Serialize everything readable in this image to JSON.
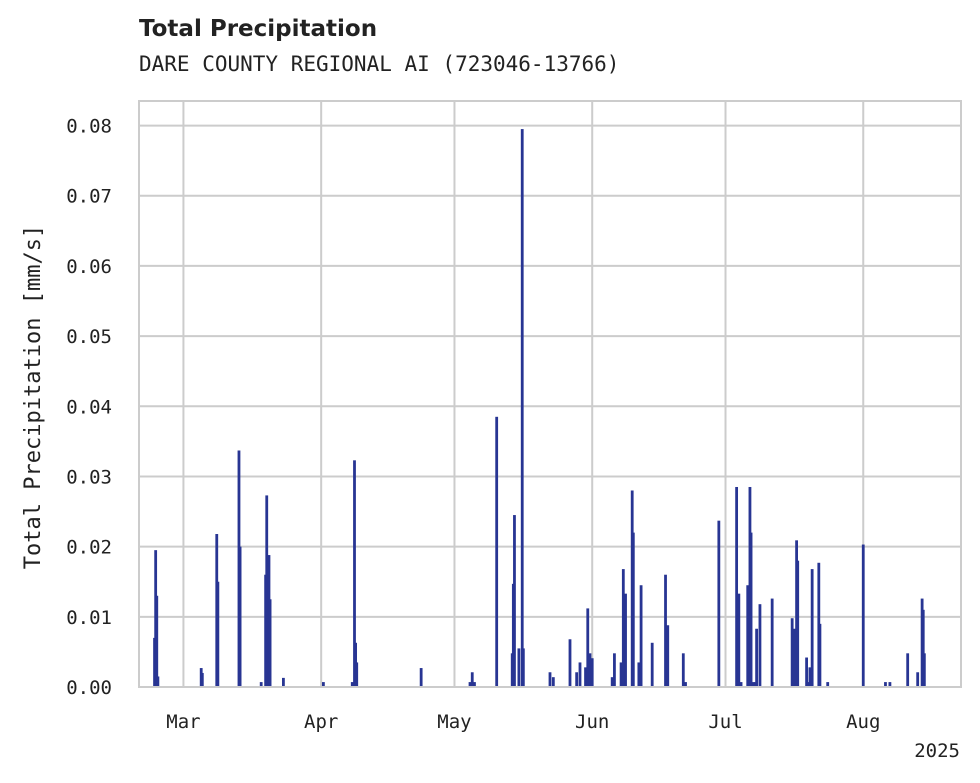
{
  "chart_data": {
    "type": "bar",
    "title": "Total Precipitation",
    "subtitle": "DARE COUNTY REGIONAL AI (723046-13766)",
    "ylabel": "Total Precipitation [mm/s]",
    "xlabel": "",
    "ylim": [
      0,
      0.0835
    ],
    "xlim": [
      "2025-02-19",
      "2025-08-23"
    ],
    "grid": true,
    "color": "#283593",
    "yticks": [
      {
        "value": 0.0,
        "label": "0.00"
      },
      {
        "value": 0.01,
        "label": "0.01"
      },
      {
        "value": 0.02,
        "label": "0.02"
      },
      {
        "value": 0.03,
        "label": "0.03"
      },
      {
        "value": 0.04,
        "label": "0.04"
      },
      {
        "value": 0.05,
        "label": "0.05"
      },
      {
        "value": 0.06,
        "label": "0.06"
      },
      {
        "value": 0.07,
        "label": "0.07"
      },
      {
        "value": 0.08,
        "label": "0.08"
      }
    ],
    "xticks": [
      {
        "date": "2025-03-01",
        "label": "Mar"
      },
      {
        "date": "2025-04-01",
        "label": "Apr"
      },
      {
        "date": "2025-05-01",
        "label": "May"
      },
      {
        "date": "2025-06-01",
        "label": "Jun"
      },
      {
        "date": "2025-07-01",
        "label": "Jul"
      },
      {
        "date": "2025-08-01",
        "label": "Aug"
      }
    ],
    "year_label": "2025",
    "points": [
      [
        "2025-02-22T12:00",
        0.007
      ],
      [
        "2025-02-22T18:00",
        0.0195
      ],
      [
        "2025-02-23T00:00",
        0.013
      ],
      [
        "2025-02-23T06:00",
        0.0015
      ],
      [
        "2025-03-05T00:00",
        0.0027
      ],
      [
        "2025-03-05T06:00",
        0.002
      ],
      [
        "2025-03-08T12:00",
        0.0218
      ],
      [
        "2025-03-08T18:00",
        0.015
      ],
      [
        "2025-03-13T12:00",
        0.0337
      ],
      [
        "2025-03-13T18:00",
        0.02
      ],
      [
        "2025-03-18T12:00",
        0.0007
      ],
      [
        "2025-03-19T12:00",
        0.016
      ],
      [
        "2025-03-19T18:00",
        0.0273
      ],
      [
        "2025-03-20T06:00",
        0.0188
      ],
      [
        "2025-03-20T12:00",
        0.0125
      ],
      [
        "2025-03-23T12:00",
        0.0013
      ],
      [
        "2025-04-01T12:00",
        0.0007
      ],
      [
        "2025-04-08T00:00",
        0.0007
      ],
      [
        "2025-04-08T12:00",
        0.0323
      ],
      [
        "2025-04-08T18:00",
        0.0063
      ],
      [
        "2025-04-09T00:00",
        0.0035
      ],
      [
        "2025-04-23T12:00",
        0.0027
      ],
      [
        "2025-05-04T12:00",
        0.0007
      ],
      [
        "2025-05-05T00:00",
        0.0021
      ],
      [
        "2025-05-05T12:00",
        0.0007
      ],
      [
        "2025-05-10T12:00",
        0.0385
      ],
      [
        "2025-05-14T00:00",
        0.0048
      ],
      [
        "2025-05-14T06:00",
        0.0147
      ],
      [
        "2025-05-14T12:00",
        0.0245
      ],
      [
        "2025-05-15T12:00",
        0.0055
      ],
      [
        "2025-05-16T06:00",
        0.0795
      ],
      [
        "2025-05-16T12:00",
        0.0055
      ],
      [
        "2025-05-22T12:00",
        0.0021
      ],
      [
        "2025-05-23T06:00",
        0.0014
      ],
      [
        "2025-05-27T00:00",
        0.0068
      ],
      [
        "2025-05-28T12:00",
        0.0021
      ],
      [
        "2025-05-29T06:00",
        0.0035
      ],
      [
        "2025-05-30T12:00",
        0.0028
      ],
      [
        "2025-05-31T00:00",
        0.0112
      ],
      [
        "2025-05-31T12:00",
        0.0048
      ],
      [
        "2025-06-01T00:00",
        0.0041
      ],
      [
        "2025-06-05T12:00",
        0.0014
      ],
      [
        "2025-06-06T00:00",
        0.0048
      ],
      [
        "2025-06-07T12:00",
        0.0035
      ],
      [
        "2025-06-08T00:00",
        0.0168
      ],
      [
        "2025-06-08T12:00",
        0.0133
      ],
      [
        "2025-06-10T00:00",
        0.028
      ],
      [
        "2025-06-10T06:00",
        0.022
      ],
      [
        "2025-06-11T12:00",
        0.0035
      ],
      [
        "2025-06-12T00:00",
        0.0145
      ],
      [
        "2025-06-14T12:00",
        0.0063
      ],
      [
        "2025-06-17T12:00",
        0.016
      ],
      [
        "2025-06-18T00:00",
        0.0088
      ],
      [
        "2025-06-21T12:00",
        0.0048
      ],
      [
        "2025-06-22T00:00",
        0.0007
      ],
      [
        "2025-06-29T12:00",
        0.0237
      ],
      [
        "2025-07-03T12:00",
        0.0285
      ],
      [
        "2025-07-04T00:00",
        0.0133
      ],
      [
        "2025-07-04T12:00",
        0.0007
      ],
      [
        "2025-07-06T00:00",
        0.0145
      ],
      [
        "2025-07-06T12:00",
        0.0285
      ],
      [
        "2025-07-06T18:00",
        0.022
      ],
      [
        "2025-07-07T06:00",
        0.0007
      ],
      [
        "2025-07-07T18:00",
        0.0007
      ],
      [
        "2025-07-08T00:00",
        0.0083
      ],
      [
        "2025-07-08T18:00",
        0.0118
      ],
      [
        "2025-07-11T12:00",
        0.0126
      ],
      [
        "2025-07-16T00:00",
        0.0098
      ],
      [
        "2025-07-16T12:00",
        0.0083
      ],
      [
        "2025-07-17T00:00",
        0.0209
      ],
      [
        "2025-07-17T06:00",
        0.018
      ],
      [
        "2025-07-19T06:00",
        0.0042
      ],
      [
        "2025-07-19T12:00",
        0.0007
      ],
      [
        "2025-07-20T00:00",
        0.0028
      ],
      [
        "2025-07-20T12:00",
        0.0168
      ],
      [
        "2025-07-22T00:00",
        0.0177
      ],
      [
        "2025-07-22T06:00",
        0.009
      ],
      [
        "2025-07-24T00:00",
        0.0007
      ],
      [
        "2025-08-01T00:00",
        0.0203
      ],
      [
        "2025-08-06T00:00",
        0.0007
      ],
      [
        "2025-08-07T00:00",
        0.0007
      ],
      [
        "2025-08-11T00:00",
        0.0048
      ],
      [
        "2025-08-13T06:00",
        0.0021
      ],
      [
        "2025-08-14T06:00",
        0.0126
      ],
      [
        "2025-08-14T12:00",
        0.011
      ],
      [
        "2025-08-14T18:00",
        0.0048
      ]
    ]
  }
}
